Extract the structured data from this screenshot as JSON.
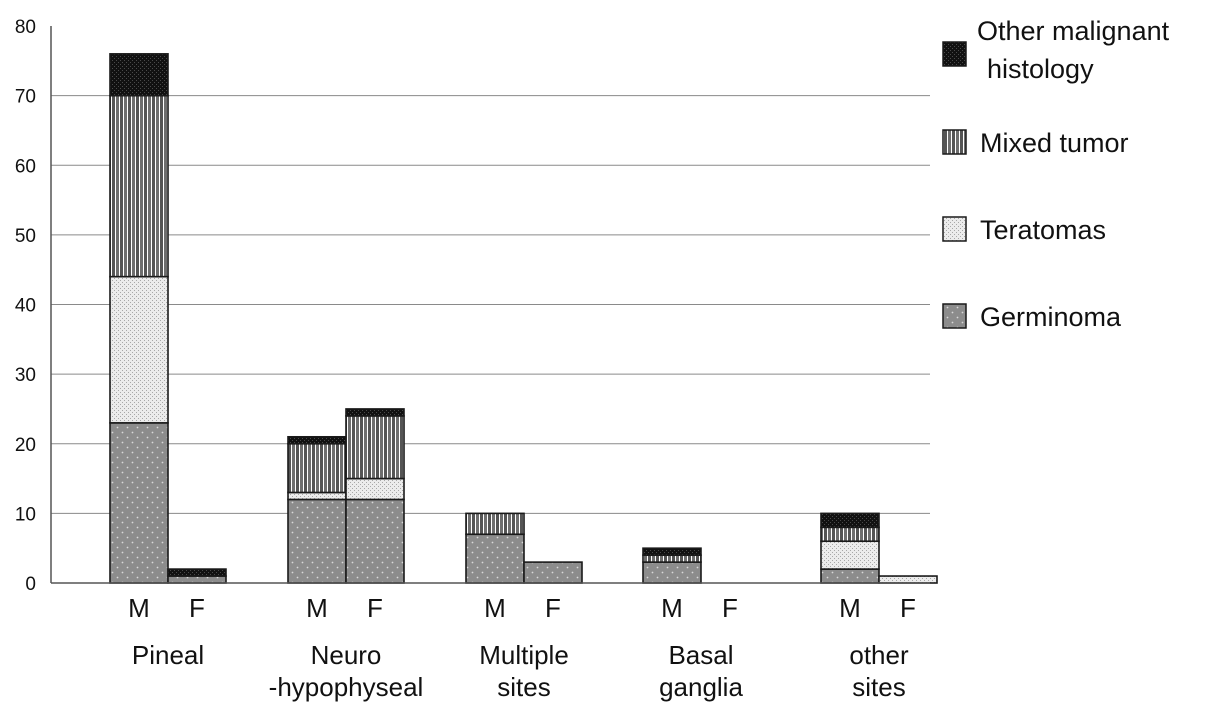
{
  "chart_data": {
    "type": "bar",
    "stacked": true,
    "y_ticks": [
      "0",
      "10",
      "20",
      "30",
      "40",
      "50",
      "60",
      "70",
      "80"
    ],
    "ylim": [
      0,
      80
    ],
    "grid": true,
    "legend_position": "right",
    "groups": [
      {
        "label": "Pineal",
        "label_lines": [
          "Pineal"
        ]
      },
      {
        "label": "Neuro -hypophyseal",
        "label_lines": [
          "Neuro",
          "-hypophyseal"
        ]
      },
      {
        "label": "Multiple sites",
        "label_lines": [
          "Multiple",
          "sites"
        ]
      },
      {
        "label": "Basal ganglia",
        "label_lines": [
          "Basal",
          "ganglia"
        ]
      },
      {
        "label": "other sites",
        "label_lines": [
          "other",
          "sites"
        ]
      }
    ],
    "sex_labels": [
      "M",
      "F"
    ],
    "categories": [
      "Pineal M",
      "Pineal F",
      "Neuro-hypophyseal M",
      "Neuro-hypophyseal F",
      "Multiple sites M",
      "Multiple sites F",
      "Basal ganglia M",
      "Basal ganglia F",
      "other sites M",
      "other sites F"
    ],
    "series": [
      {
        "name": "Germinoma",
        "values": [
          23,
          1,
          12,
          12,
          7,
          3,
          3,
          0,
          2,
          0
        ]
      },
      {
        "name": "Teratomas",
        "values": [
          21,
          0,
          1,
          3,
          0,
          0,
          0,
          0,
          4,
          1
        ]
      },
      {
        "name": "Mixed tumor",
        "values": [
          26,
          0,
          7,
          9,
          3,
          0,
          1,
          0,
          2,
          0
        ]
      },
      {
        "name": "Other malignant histology",
        "values": [
          6,
          1,
          1,
          1,
          0,
          0,
          1,
          0,
          2,
          0
        ]
      }
    ],
    "legend": [
      {
        "series": "Other malignant histology",
        "label_lines": [
          "Other malignant",
          "histology"
        ]
      },
      {
        "series": "Mixed tumor",
        "label_lines": [
          "Mixed tumor"
        ]
      },
      {
        "series": "Teratomas",
        "label_lines": [
          "Teratomas"
        ]
      },
      {
        "series": "Germinoma",
        "label_lines": [
          "Germinoma"
        ]
      }
    ]
  }
}
